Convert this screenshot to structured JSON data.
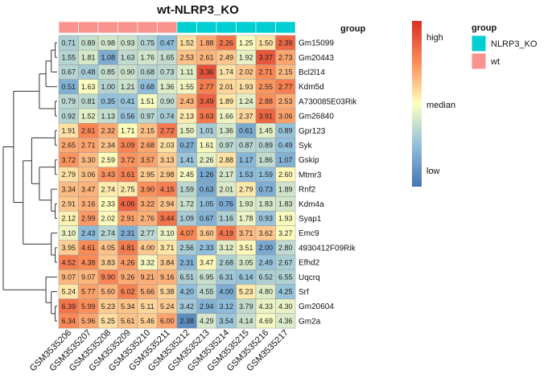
{
  "chart_data": {
    "type": "heatmap",
    "title": "wt-NLRP3_KO",
    "columns": [
      "GSM3535206",
      "GSM3535207",
      "GSM3535208",
      "GSM3535209",
      "GSM3535210",
      "GSM3535211",
      "GSM3535212",
      "GSM3535213",
      "GSM3535214",
      "GSM3535215",
      "GSM3535216",
      "GSM3535217"
    ],
    "column_groups": [
      "wt",
      "wt",
      "wt",
      "wt",
      "wt",
      "wt",
      "NLRP3_KO",
      "NLRP3_KO",
      "NLRP3_KO",
      "NLRP3_KO",
      "NLRP3_KO",
      "NLRP3_KO"
    ],
    "rows": [
      "Gm15099",
      "Gm20443",
      "Bcl2l14",
      "Kdm5d",
      "A730085E03Rik",
      "Gm26840",
      "Gpr123",
      "Syk",
      "Gskip",
      "Mtmr3",
      "Rnf2",
      "Kdm4a",
      "Syap1",
      "Emc9",
      "4930412F09Rik",
      "Efhd2",
      "Uqcrq",
      "Srf",
      "Gm20604",
      "Gm2a"
    ],
    "values": [
      [
        0.71,
        0.89,
        0.98,
        0.93,
        0.75,
        0.47,
        1.52,
        1.88,
        2.26,
        1.25,
        1.5,
        2.39
      ],
      [
        1.55,
        1.81,
        1.08,
        1.63,
        1.76,
        1.65,
        2.53,
        2.61,
        2.49,
        1.92,
        3.37,
        2.73
      ],
      [
        0.67,
        0.48,
        0.85,
        0.9,
        0.68,
        0.73,
        1.11,
        3.36,
        1.74,
        2.02,
        2.71,
        2.15
      ],
      [
        0.51,
        1.63,
        1.0,
        1.21,
        0.68,
        1.36,
        1.55,
        2.77,
        2.01,
        1.93,
        2.55,
        2.77
      ],
      [
        0.79,
        0.81,
        0.35,
        0.41,
        1.51,
        0.9,
        2.43,
        3.49,
        1.89,
        1.24,
        2.88,
        2.53
      ],
      [
        0.92,
        1.52,
        1.13,
        0.56,
        0.97,
        0.74,
        2.13,
        3.63,
        1.66,
        2.37,
        3.91,
        3.06
      ],
      [
        1.91,
        2.61,
        2.32,
        1.71,
        2.15,
        2.72,
        1.5,
        1.01,
        1.36,
        0.61,
        1.45,
        0.89
      ],
      [
        2.65,
        2.71,
        2.34,
        3.09,
        2.68,
        2.03,
        0.27,
        1.61,
        0.97,
        0.87,
        0.89,
        0.49
      ],
      [
        3.72,
        3.3,
        2.59,
        3.72,
        3.57,
        3.13,
        1.41,
        2.26,
        2.88,
        1.17,
        1.86,
        1.07
      ],
      [
        2.79,
        3.06,
        3.43,
        3.61,
        2.95,
        2.98,
        2.45,
        1.26,
        2.17,
        1.53,
        1.59,
        2.6
      ],
      [
        3.34,
        3.47,
        2.74,
        2.75,
        3.9,
        4.15,
        1.59,
        0.63,
        2.01,
        2.79,
        0.73,
        1.89
      ],
      [
        2.91,
        3.16,
        2.33,
        4.06,
        3.22,
        2.94,
        1.72,
        1.05,
        0.76,
        1.93,
        1.83,
        1.83
      ],
      [
        2.12,
        2.99,
        2.02,
        2.91,
        2.76,
        3.44,
        1.09,
        0.67,
        1.16,
        1.78,
        0.93,
        1.93
      ],
      [
        3.1,
        2.43,
        2.74,
        2.31,
        2.77,
        3.1,
        4.07,
        3.6,
        4.19,
        3.71,
        3.62,
        3.27
      ],
      [
        3.95,
        4.61,
        4.05,
        4.81,
        4.0,
        3.71,
        2.56,
        2.33,
        3.12,
        3.51,
        2.0,
        2.8
      ],
      [
        4.52,
        4.38,
        3.83,
        4.26,
        3.32,
        3.84,
        2.31,
        3.47,
        2.68,
        3.05,
        2.49,
        2.67
      ],
      [
        9.07,
        9.07,
        9.9,
        9.26,
        9.21,
        9.16,
        6.51,
        6.95,
        6.31,
        6.14,
        6.52,
        6.55
      ],
      [
        5.24,
        5.77,
        5.6,
        6.02,
        5.66,
        5.38,
        4.2,
        4.55,
        4.0,
        5.23,
        4.8,
        4.25
      ],
      [
        6.39,
        5.99,
        5.23,
        5.34,
        5.11,
        5.24,
        3.42,
        2.94,
        3.12,
        3.79,
        4.33,
        4.3
      ],
      [
        6.34,
        5.96,
        5.25,
        5.61,
        5.46,
        6.0,
        2.38,
        4.29,
        3.54,
        4.14,
        4.69,
        4.36
      ]
    ],
    "group_annotation_label": "group",
    "legend": {
      "colorbar_labels": [
        "high",
        "median",
        "low"
      ],
      "group_title": "group",
      "group_entries": [
        {
          "name": "NLRP3_KO",
          "color": "#00CED1"
        },
        {
          "name": "wt",
          "color": "#F8938E"
        }
      ]
    },
    "colors": {
      "low": "#4575B4",
      "mid": "#FFFFBF",
      "high": "#D73027"
    }
  }
}
